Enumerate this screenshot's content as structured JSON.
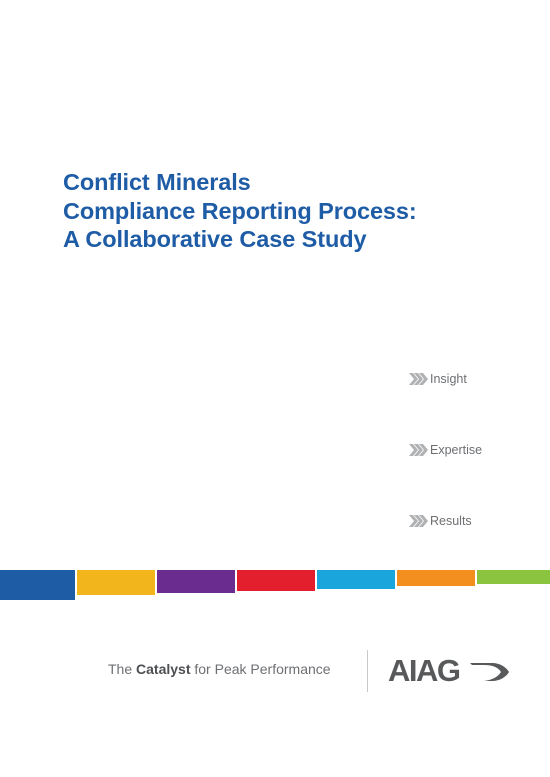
{
  "title": {
    "line1": "Conflict Minerals",
    "line2": "Compliance Reporting Process:",
    "line3": "A Collaborative Case Study"
  },
  "bullets": [
    {
      "label": "Insight",
      "icon": "chevron-icon"
    },
    {
      "label": "Expertise",
      "icon": "chevron-icon"
    },
    {
      "label": "Results",
      "icon": "chevron-icon"
    }
  ],
  "color_band": [
    "#1f5ca6",
    "#f3b51c",
    "#6a2c8f",
    "#e31e2d",
    "#1aa6dc",
    "#f28f1e",
    "#8bc53f"
  ],
  "tagline": {
    "prefix": "The ",
    "emphasis": "Catalyst",
    "suffix": " for Peak Performance"
  },
  "logo": {
    "text": "AIAG"
  },
  "colors": {
    "title": "#1f5ca6",
    "text_gray": "#6d6f72",
    "chevron": "#b0b2b4"
  }
}
